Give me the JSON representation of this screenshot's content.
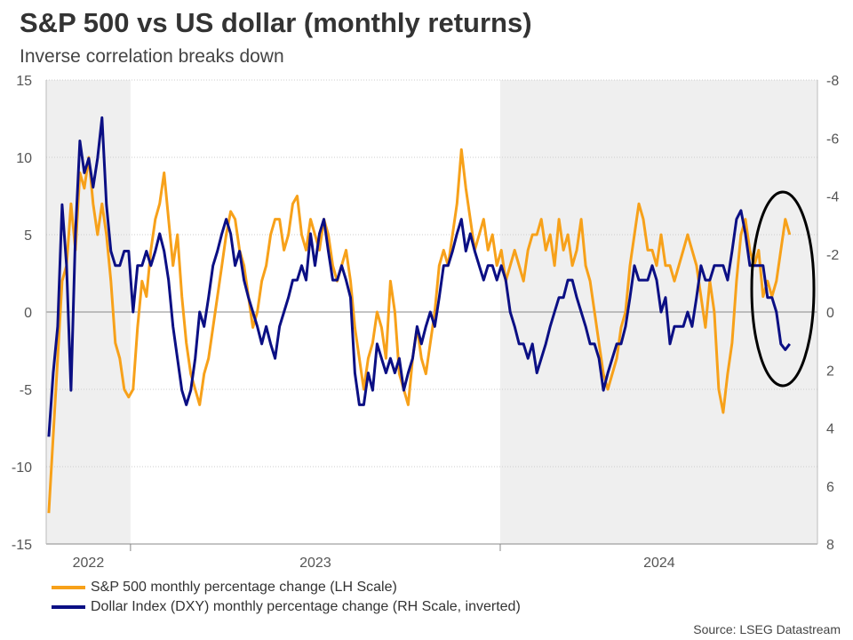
{
  "title": "S&P 500 vs US dollar (monthly returns)",
  "subtitle": "Inverse correlation breaks down",
  "source": "Source: LSEG Datastream",
  "colors": {
    "sp500": "#F7A11A",
    "dxy": "#0B0F84",
    "shade": "#EFEFEF",
    "annotation": "#000000"
  },
  "chart_data": {
    "type": "line",
    "title": "S&P 500 vs US dollar (monthly returns)",
    "x_range": [
      2022.772,
      2024.858
    ],
    "x_start": 2022.779,
    "x_step": 0.012,
    "x_tick_labels": [
      {
        "label": "2022",
        "at": 2022.886
      },
      {
        "label": "2023",
        "at": 2023.5
      },
      {
        "label": "2024",
        "at": 2024.43
      }
    ],
    "x_tick_marks": [
      2023,
      2024
    ],
    "shaded_ranges": [
      [
        2022.772,
        2023
      ],
      [
        2024,
        2024.858
      ]
    ],
    "left_axis": {
      "label": "LH Scale",
      "ylim": [
        -15,
        15
      ],
      "ticks": [
        "15",
        "10",
        "5",
        "0",
        "-5",
        "-10",
        "-15"
      ],
      "tick_values": [
        15,
        10,
        5,
        0,
        -5,
        -10,
        -15
      ]
    },
    "right_axis": {
      "label": "RH Scale, inverted",
      "ylim": [
        -8,
        8
      ],
      "inverted": true,
      "ticks": [
        "-8",
        "-6",
        "-4",
        "-2",
        "0",
        "2",
        "4",
        "6",
        "8"
      ],
      "tick_values": [
        -8,
        -6,
        -4,
        -2,
        0,
        2,
        4,
        6,
        8
      ]
    },
    "grid": true,
    "legend_position": "bottom-left",
    "series": [
      {
        "name": "S&P 500 monthly percentage change (LH Scale)",
        "axis": "left",
        "values": [
          -13,
          -8,
          -3,
          2,
          3,
          7,
          4,
          9,
          8,
          10,
          7,
          5,
          7,
          5,
          2,
          -2,
          -3,
          -5,
          -5.5,
          -5,
          -1,
          2,
          1,
          4,
          6,
          7,
          9,
          6,
          3,
          5,
          1,
          -2,
          -4,
          -5,
          -6,
          -4,
          -3,
          -1,
          1,
          3,
          5,
          6.5,
          6,
          4,
          3,
          1,
          -1,
          0,
          2,
          3,
          5,
          6,
          6,
          4,
          5,
          7,
          7.5,
          5,
          4,
          6,
          5,
          4,
          6,
          5,
          3,
          2,
          3,
          4,
          2,
          -1,
          -3,
          -5,
          -3,
          -2,
          0,
          -1,
          -3,
          2,
          0,
          -4,
          -5,
          -6,
          -3,
          -1,
          -3,
          -4,
          -2,
          0,
          3,
          4,
          3,
          5,
          7,
          10.5,
          8,
          6,
          4,
          5,
          6,
          4,
          5,
          3,
          4,
          2,
          3,
          4,
          3,
          2,
          4,
          5,
          5,
          6,
          4,
          5,
          3,
          6,
          4,
          5,
          3,
          4,
          6,
          3,
          2,
          0,
          -2,
          -4,
          -5,
          -4,
          -3,
          -1,
          0,
          3,
          5,
          7,
          6,
          4,
          4,
          3,
          5,
          3,
          3,
          2,
          3,
          4,
          5,
          4,
          3,
          1,
          -1,
          2,
          0,
          -5,
          -6.5,
          -4,
          -2,
          2,
          5,
          6,
          4,
          3,
          4,
          1,
          2,
          1,
          2,
          4,
          6,
          5
        ]
      },
      {
        "name": "Dollar Index (DXY) monthly percentage change (RH Scale, inverted)",
        "axis": "right",
        "values": [
          4.3,
          2.1,
          0.5,
          -3.7,
          -1.6,
          2.7,
          -2.7,
          -5.9,
          -4.8,
          -5.3,
          -4.3,
          -5.3,
          -6.7,
          -3.7,
          -2.1,
          -1.6,
          -1.6,
          -2.1,
          -2.1,
          0,
          -1.6,
          -1.6,
          -2.1,
          -1.6,
          -2.1,
          -2.7,
          -2.1,
          -1.1,
          0.5,
          1.6,
          2.7,
          3.2,
          2.7,
          1.6,
          0,
          0.5,
          -0.5,
          -1.6,
          -2.1,
          -2.7,
          -3.2,
          -2.7,
          -1.6,
          -2.1,
          -1.1,
          -0.5,
          0,
          0.5,
          1.1,
          0.5,
          1.1,
          1.6,
          0.5,
          0,
          -0.5,
          -1.1,
          -1.1,
          -1.6,
          -1.1,
          -2.7,
          -1.6,
          -2.7,
          -3.2,
          -2.1,
          -1.1,
          -1.1,
          -1.6,
          -1.1,
          -0.5,
          2.1,
          3.2,
          3.2,
          2.1,
          2.7,
          1.1,
          1.6,
          2.1,
          1.6,
          2.1,
          1.6,
          2.7,
          2.1,
          1.6,
          0.5,
          1.1,
          0.5,
          0,
          0.5,
          -0.5,
          -1.6,
          -1.6,
          -2.1,
          -2.7,
          -3.2,
          -2.1,
          -2.7,
          -2.1,
          -1.6,
          -1.1,
          -1.6,
          -1.6,
          -1.1,
          -1.6,
          -1.1,
          0,
          0.5,
          1.1,
          1.1,
          1.6,
          1.1,
          2.1,
          1.6,
          1.1,
          0.5,
          0,
          -0.5,
          -0.5,
          -1.1,
          -1.1,
          -0.5,
          0,
          0.5,
          1.1,
          1.1,
          1.6,
          2.7,
          2.1,
          1.6,
          1.1,
          1.1,
          0.5,
          -0.5,
          -1.6,
          -1.1,
          -1.1,
          -1.1,
          -1.6,
          -1.1,
          0,
          -0.5,
          1.1,
          0.5,
          0.5,
          0.5,
          0,
          0.5,
          -0.5,
          -1.6,
          -1.1,
          -1.1,
          -1.6,
          -1.6,
          -1.6,
          -1.1,
          -2.1,
          -3.2,
          -3.5,
          -2.7,
          -1.6,
          -1.6,
          -1.6,
          -1.6,
          -0.5,
          -0.5,
          0,
          1.1,
          1.3,
          1.1
        ]
      }
    ]
  }
}
